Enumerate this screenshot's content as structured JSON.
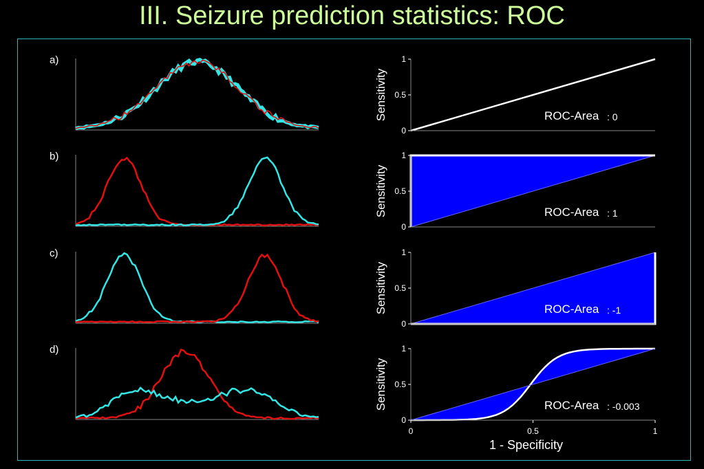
{
  "slide": {
    "title": "III. Seizure prediction statistics:  ROC"
  },
  "colors": {
    "title": "#ccff99",
    "frame": "#2fb7b7",
    "red": "#e01010",
    "cyan": "#33e6e6",
    "fill": "#0000ff",
    "roc_line": "#ffffff",
    "axis": "#888888"
  },
  "chart_data": [
    {
      "type": "line",
      "panel": "a)",
      "title": "",
      "xlabel": "",
      "ylabel": "",
      "ylim": [
        0,
        1
      ],
      "x": [
        0,
        1
      ],
      "series": [
        {
          "color": "#e01010",
          "shape": "gauss",
          "center": 0.5,
          "width": 0.17,
          "noise": 0.08,
          "overlay": true
        },
        {
          "color": "#33e6e6",
          "shape": "gauss",
          "center": 0.5,
          "width": 0.17,
          "noise": 0.08,
          "underlay": true
        }
      ]
    },
    {
      "type": "line",
      "panel": "b)",
      "ylim": [
        0,
        1
      ],
      "series": [
        {
          "color": "#e01010",
          "shape": "gauss",
          "center": 0.2,
          "width": 0.07,
          "noise": 0.06
        },
        {
          "color": "#33e6e6",
          "shape": "gauss",
          "center": 0.78,
          "width": 0.07,
          "noise": 0.06
        }
      ]
    },
    {
      "type": "line",
      "panel": "c)",
      "ylim": [
        0,
        1
      ],
      "series": [
        {
          "color": "#33e6e6",
          "shape": "gauss",
          "center": 0.2,
          "width": 0.07,
          "noise": 0.06
        },
        {
          "color": "#e01010",
          "shape": "gauss",
          "center": 0.78,
          "width": 0.07,
          "noise": 0.06
        }
      ]
    },
    {
      "type": "line",
      "panel": "d)",
      "ylim": [
        0,
        1
      ],
      "series": [
        {
          "color": "#e01010",
          "shape": "gauss",
          "center": 0.45,
          "width": 0.1,
          "noise": 0.08,
          "amp": 0.95
        },
        {
          "color": "#33e6e6",
          "shape": "bimodal",
          "center": 0.5,
          "width": 0.3,
          "noise": 0.08,
          "amp": 0.38
        }
      ]
    },
    {
      "type": "area",
      "panel": "roc-a",
      "ylabel": "Sensitivity",
      "xlim": [
        0,
        1
      ],
      "ylim": [
        0,
        1
      ],
      "yticks": [
        "0",
        "0.5",
        "1"
      ],
      "roc_label": "ROC-Area",
      "roc_value": ": 0",
      "curve": "diagonal"
    },
    {
      "type": "area",
      "panel": "roc-b",
      "ylabel": "Sensitivity",
      "xlim": [
        0,
        1
      ],
      "ylim": [
        0,
        1
      ],
      "yticks": [
        "0",
        "0.5",
        "1"
      ],
      "roc_label": "ROC-Area",
      "roc_value": ": 1",
      "curve": "upper"
    },
    {
      "type": "area",
      "panel": "roc-c",
      "ylabel": "Sensitivity",
      "xlim": [
        0,
        1
      ],
      "ylim": [
        0,
        1
      ],
      "yticks": [
        "0",
        "0.5",
        "1"
      ],
      "roc_label": "ROC-Area",
      "roc_value": ": -1",
      "curve": "lower"
    },
    {
      "type": "area",
      "panel": "roc-d",
      "ylabel": "Sensitivity",
      "xlabel": "1 - Specificity",
      "xlim": [
        0,
        1
      ],
      "ylim": [
        0,
        1
      ],
      "yticks": [
        "0",
        "0.5",
        "1"
      ],
      "xticks": [
        "0",
        "0.5",
        "1"
      ],
      "roc_label": "ROC-Area",
      "roc_value": ": -0.003",
      "curve": "sigmoid"
    }
  ],
  "labels": {
    "a": "a)",
    "b": "b)",
    "c": "c)",
    "d": "d)"
  }
}
